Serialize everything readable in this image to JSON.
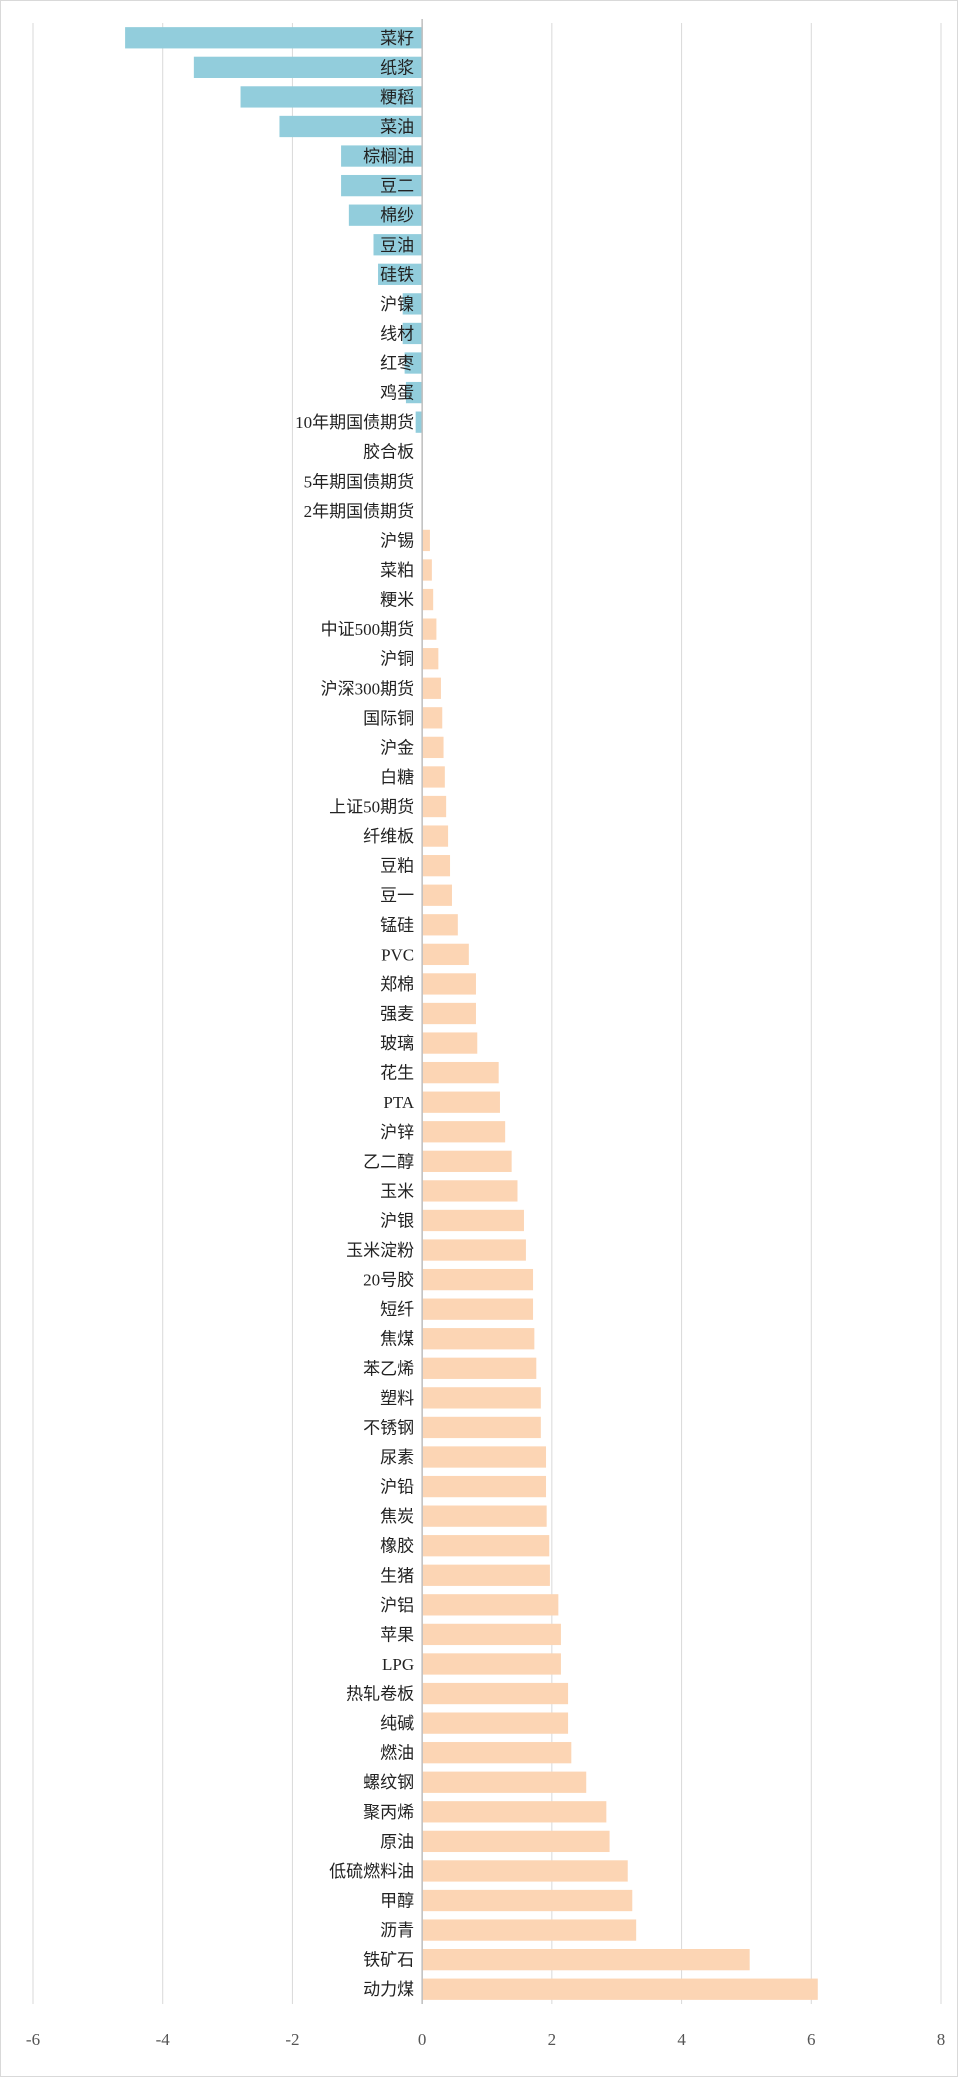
{
  "colors": {
    "negative": "#92cddc",
    "positive": "#fcd5b4",
    "grid": "#d9d9d9",
    "axis": "#bfbfbf",
    "frame": "#d9d9d9"
  },
  "chart_data": {
    "type": "bar",
    "orientation": "horizontal",
    "title": "",
    "xlabel": "",
    "ylabel": "",
    "xlim": [
      -6,
      8
    ],
    "x_ticks": [
      "-6",
      "-4",
      "-2",
      "0",
      "2",
      "4",
      "6",
      "8"
    ],
    "grid": "vertical",
    "legend": "none",
    "categories": [
      "菜籽",
      "纸浆",
      "粳稻",
      "菜油",
      "棕榈油",
      "豆二",
      "棉纱",
      "豆油",
      "硅铁",
      "沪镍",
      "线材",
      "红枣",
      "鸡蛋",
      "10年期国债期货",
      "胶合板",
      "5年期国债期货",
      "2年期国债期货",
      "沪锡",
      "菜粕",
      "粳米",
      "中证500期货",
      "沪铜",
      "沪深300期货",
      "国际铜",
      "沪金",
      "白糖",
      "上证50期货",
      "纤维板",
      "豆粕",
      "豆一",
      "锰硅",
      "PVC",
      "郑棉",
      "强麦",
      "玻璃",
      "花生",
      "PTA",
      "沪锌",
      "乙二醇",
      "玉米",
      "沪银",
      "玉米淀粉",
      "20号胶",
      "短纤",
      "焦煤",
      "苯乙烯",
      "塑料",
      "不锈钢",
      "尿素",
      "沪铅",
      "焦炭",
      "橡胶",
      "生猪",
      "沪铝",
      "苹果",
      "LPG",
      "热轧卷板",
      "纯碱",
      "燃油",
      "螺纹钢",
      "聚丙烯",
      "原油",
      "低硫燃料油",
      "甲醇",
      "沥青",
      "铁矿石",
      "动力煤"
    ],
    "values": [
      -4.58,
      -3.52,
      -2.8,
      -2.2,
      -1.25,
      -1.25,
      -1.13,
      -0.75,
      -0.68,
      -0.3,
      -0.3,
      -0.27,
      -0.25,
      -0.1,
      0.0,
      0.0,
      0.0,
      0.12,
      0.15,
      0.17,
      0.22,
      0.25,
      0.29,
      0.31,
      0.33,
      0.35,
      0.37,
      0.4,
      0.43,
      0.46,
      0.55,
      0.72,
      0.83,
      0.83,
      0.85,
      1.18,
      1.2,
      1.28,
      1.38,
      1.47,
      1.57,
      1.6,
      1.71,
      1.71,
      1.73,
      1.76,
      1.83,
      1.83,
      1.91,
      1.91,
      1.92,
      1.96,
      1.97,
      2.1,
      2.14,
      2.14,
      2.25,
      2.25,
      2.3,
      2.53,
      2.84,
      2.89,
      3.17,
      3.24,
      3.3,
      5.05,
      6.1
    ]
  }
}
